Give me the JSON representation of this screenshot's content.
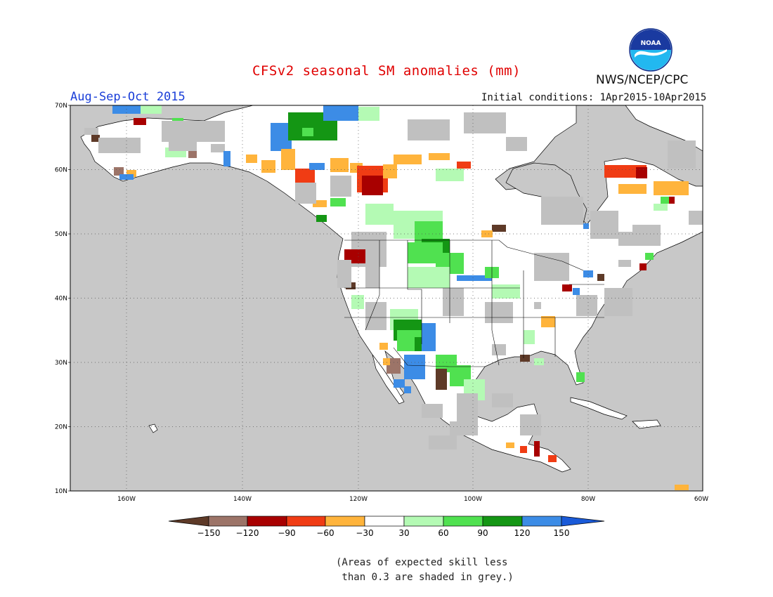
{
  "header": {
    "title": "CFSv2 seasonal SM anomalies (mm)",
    "season": "Aug-Sep-Oct 2015",
    "initial_conditions": "Initial conditions: 1Apr2015-10Apr2015",
    "agency": "NWS/NCEP/CPC",
    "logo_text": "NOAA"
  },
  "map": {
    "lat_labels": [
      "70N",
      "60N",
      "50N",
      "40N",
      "30N",
      "20N",
      "10N"
    ],
    "lon_labels": [
      "160W",
      "140W",
      "120W",
      "100W",
      "80W",
      "60W"
    ],
    "ocean_color": "#c8c8c8",
    "land_color": "#ffffff",
    "skill_mask_color": "#c0c0c0"
  },
  "colorbar": {
    "tick_labels": [
      "-150",
      "-120",
      "-90",
      "-60",
      "-30",
      "30",
      "60",
      "90",
      "120",
      "150"
    ],
    "colors": [
      "#5e3a28",
      "#9c7468",
      "#a80000",
      "#f03c14",
      "#ffb43c",
      "#ffffff",
      "#b4fab4",
      "#50e150",
      "#149614",
      "#3c8ce6",
      "#1a5ad8"
    ]
  },
  "footnote": {
    "line1": "(Areas of expected skill less",
    "line2": " than 0.3 are shaded in grey.)"
  }
}
